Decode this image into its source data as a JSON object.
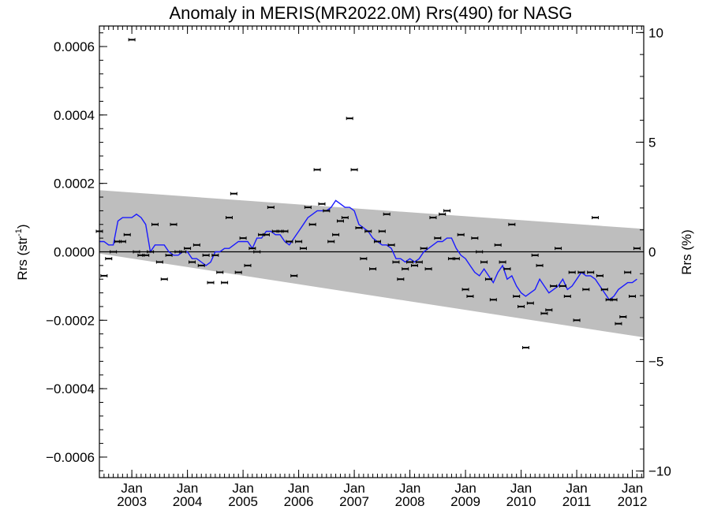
{
  "chart_data": {
    "type": "scatter",
    "title": "Anomaly in MERIS(MR2022.0M) Rrs(490) for NASG",
    "ylabel_left": "Rrs (str",
    "ylabel_left_sup": "-1",
    "ylabel_left_tail": ")",
    "ylabel_right": "Rrs (%)",
    "ylim_left": [
      -0.00066,
      0.00066
    ],
    "ylim_right": [
      -10.3,
      10.3
    ],
    "xlim": [
      "2002-06-01",
      "2012-03-15"
    ],
    "left_ticks": [
      {
        "v": 0.0006,
        "label": "0.0006"
      },
      {
        "v": 0.0004,
        "label": "0.0004"
      },
      {
        "v": 0.0002,
        "label": "0.0002"
      },
      {
        "v": 0.0,
        "label": "0.0000"
      },
      {
        "v": -0.0002,
        "label": "−0.0002"
      },
      {
        "v": -0.0004,
        "label": "−0.0004"
      },
      {
        "v": -0.0006,
        "label": "−0.0006"
      }
    ],
    "right_ticks": [
      {
        "v": 10,
        "label": "10"
      },
      {
        "v": 5,
        "label": "5"
      },
      {
        "v": 0,
        "label": "0"
      },
      {
        "v": -5,
        "label": "−5"
      },
      {
        "v": -10,
        "label": "−10"
      }
    ],
    "x_ticks": [
      {
        "date": "2003-01-01",
        "month": "Jan",
        "year": "2003"
      },
      {
        "date": "2004-01-01",
        "month": "Jan",
        "year": "2004"
      },
      {
        "date": "2005-01-01",
        "month": "Jan",
        "year": "2005"
      },
      {
        "date": "2006-01-01",
        "month": "Jan",
        "year": "2006"
      },
      {
        "date": "2007-01-01",
        "month": "Jan",
        "year": "2007"
      },
      {
        "date": "2008-01-01",
        "month": "Jan",
        "year": "2008"
      },
      {
        "date": "2009-01-01",
        "month": "Jan",
        "year": "2009"
      },
      {
        "date": "2010-01-01",
        "month": "Jan",
        "year": "2010"
      },
      {
        "date": "2011-01-01",
        "month": "Jan",
        "year": "2011"
      },
      {
        "date": "2012-01-01",
        "month": "Jan",
        "year": "2012"
      }
    ],
    "band": {
      "start": "2002-06-01",
      "end": "2012-03-15",
      "upper": [
        0.00018,
        6.7e-05
      ],
      "lower": [
        -5e-06,
        -0.00025
      ],
      "color": "#bebebe"
    },
    "monthly_anomalies": {
      "color": "#000000",
      "points": [
        [
          "2002-06",
          6e-05
        ],
        [
          "2002-07",
          -7e-05
        ],
        [
          "2002-08",
          -2e-05
        ],
        [
          "2002-09",
          0.0
        ],
        [
          "2002-10",
          3e-05
        ],
        [
          "2002-11",
          3e-05
        ],
        [
          "2002-12",
          5e-05
        ],
        [
          "2003-01",
          0.00062
        ],
        [
          "2003-02",
          0.0
        ],
        [
          "2003-03",
          -1e-05
        ],
        [
          "2003-04",
          -1e-05
        ],
        [
          "2003-05",
          0.0
        ],
        [
          "2003-06",
          8e-05
        ],
        [
          "2003-07",
          -3e-05
        ],
        [
          "2003-08",
          -8e-05
        ],
        [
          "2003-09",
          -1e-05
        ],
        [
          "2003-10",
          8e-05
        ],
        [
          "2003-11",
          0.0
        ],
        [
          "2003-12",
          0.0
        ],
        [
          "2004-01",
          1e-05
        ],
        [
          "2004-02",
          -3e-05
        ],
        [
          "2004-03",
          2e-05
        ],
        [
          "2004-04",
          -4e-05
        ],
        [
          "2004-05",
          -1e-05
        ],
        [
          "2004-06",
          -9e-05
        ],
        [
          "2004-07",
          -1e-05
        ],
        [
          "2004-08",
          -6e-05
        ],
        [
          "2004-09",
          -9e-05
        ],
        [
          "2004-10",
          0.0001
        ],
        [
          "2004-11",
          0.00017
        ],
        [
          "2004-12",
          -6e-05
        ],
        [
          "2005-01",
          4e-05
        ],
        [
          "2005-02",
          -4e-05
        ],
        [
          "2005-03",
          1e-05
        ],
        [
          "2005-04",
          0.0
        ],
        [
          "2005-05",
          5e-05
        ],
        [
          "2005-06",
          5e-05
        ],
        [
          "2005-07",
          0.00013
        ],
        [
          "2005-08",
          6e-05
        ],
        [
          "2005-09",
          6e-05
        ],
        [
          "2005-10",
          6e-05
        ],
        [
          "2005-11",
          3e-05
        ],
        [
          "2005-12",
          -7e-05
        ],
        [
          "2006-01",
          3e-05
        ],
        [
          "2006-02",
          1e-05
        ],
        [
          "2006-03",
          0.00013
        ],
        [
          "2006-04",
          8e-05
        ],
        [
          "2006-05",
          0.00024
        ],
        [
          "2006-06",
          0.00014
        ],
        [
          "2006-07",
          0.00012
        ],
        [
          "2006-08",
          3e-05
        ],
        [
          "2006-09",
          5e-05
        ],
        [
          "2006-10",
          9e-05
        ],
        [
          "2006-11",
          0.0001
        ],
        [
          "2006-12",
          0.00039
        ],
        [
          "2007-01",
          0.00024
        ],
        [
          "2007-02",
          7e-05
        ],
        [
          "2007-03",
          -2e-05
        ],
        [
          "2007-04",
          6e-05
        ],
        [
          "2007-05",
          -5e-05
        ],
        [
          "2007-06",
          3e-05
        ],
        [
          "2007-07",
          6e-05
        ],
        [
          "2007-08",
          0.00011
        ],
        [
          "2007-09",
          2e-05
        ],
        [
          "2007-10",
          -3e-05
        ],
        [
          "2007-11",
          -8e-05
        ],
        [
          "2007-12",
          -5e-05
        ],
        [
          "2008-01",
          -3e-05
        ],
        [
          "2008-02",
          -4e-05
        ],
        [
          "2008-03",
          -3e-05
        ],
        [
          "2008-04",
          1e-05
        ],
        [
          "2008-05",
          -5e-05
        ],
        [
          "2008-06",
          0.0001
        ],
        [
          "2008-07",
          4e-05
        ],
        [
          "2008-08",
          0.00011
        ],
        [
          "2008-09",
          0.00012
        ],
        [
          "2008-10",
          -2e-05
        ],
        [
          "2008-11",
          -2e-05
        ],
        [
          "2008-12",
          5e-05
        ],
        [
          "2009-01",
          -0.00011
        ],
        [
          "2009-02",
          -0.00013
        ],
        [
          "2009-03",
          4e-05
        ],
        [
          "2009-04",
          0.0
        ],
        [
          "2009-05",
          -3e-05
        ],
        [
          "2009-06",
          -8e-05
        ],
        [
          "2009-07",
          -0.00014
        ],
        [
          "2009-08",
          2e-05
        ],
        [
          "2009-09",
          -3e-05
        ],
        [
          "2009-10",
          -5e-05
        ],
        [
          "2009-11",
          8e-05
        ],
        [
          "2009-12",
          -0.00013
        ],
        [
          "2010-01",
          -0.00016
        ],
        [
          "2010-02",
          -0.00028
        ],
        [
          "2010-03",
          -0.00015
        ],
        [
          "2010-04",
          -1e-05
        ],
        [
          "2010-05",
          -4e-05
        ],
        [
          "2010-06",
          -0.00018
        ],
        [
          "2010-07",
          -0.00017
        ],
        [
          "2010-08",
          -0.0001
        ],
        [
          "2010-09",
          1e-05
        ],
        [
          "2010-10",
          -0.0001
        ],
        [
          "2010-11",
          -0.00013
        ],
        [
          "2010-12",
          -6e-05
        ],
        [
          "2011-01",
          -0.0002
        ],
        [
          "2011-02",
          -6e-05
        ],
        [
          "2011-03",
          -0.00011
        ],
        [
          "2011-04",
          -6e-05
        ],
        [
          "2011-05",
          0.0001
        ],
        [
          "2011-06",
          -7e-05
        ],
        [
          "2011-07",
          -0.00011
        ],
        [
          "2011-08",
          -0.00014
        ],
        [
          "2011-09",
          -0.00014
        ],
        [
          "2011-10",
          -0.00021
        ],
        [
          "2011-11",
          -0.00019
        ],
        [
          "2011-12",
          -6e-05
        ],
        [
          "2012-01",
          -0.00013
        ],
        [
          "2012-02",
          1e-05
        ]
      ]
    },
    "smoothed_series": {
      "color": "#1a1aff",
      "points": [
        [
          "2002-06",
          3e-05
        ],
        [
          "2002-07",
          3e-05
        ],
        [
          "2002-08",
          2e-05
        ],
        [
          "2002-09",
          2e-05
        ],
        [
          "2002-10",
          9e-05
        ],
        [
          "2002-11",
          0.0001
        ],
        [
          "2002-12",
          0.0001
        ],
        [
          "2003-01",
          0.0001
        ],
        [
          "2003-02",
          0.00011
        ],
        [
          "2003-03",
          0.0001
        ],
        [
          "2003-04",
          8e-05
        ],
        [
          "2003-05",
          0.0
        ],
        [
          "2003-06",
          2e-05
        ],
        [
          "2003-07",
          2e-05
        ],
        [
          "2003-08",
          2e-05
        ],
        [
          "2003-09",
          0.0
        ],
        [
          "2003-10",
          -1e-05
        ],
        [
          "2003-11",
          -1e-05
        ],
        [
          "2003-12",
          0.0
        ],
        [
          "2004-01",
          0.0
        ],
        [
          "2004-02",
          -2e-05
        ],
        [
          "2004-03",
          -2e-05
        ],
        [
          "2004-04",
          -3e-05
        ],
        [
          "2004-05",
          -4e-05
        ],
        [
          "2004-06",
          -3e-05
        ],
        [
          "2004-07",
          0.0
        ],
        [
          "2004-08",
          0.0
        ],
        [
          "2004-09",
          1e-05
        ],
        [
          "2004-10",
          1e-05
        ],
        [
          "2004-11",
          2e-05
        ],
        [
          "2004-12",
          3e-05
        ],
        [
          "2005-01",
          3e-05
        ],
        [
          "2005-02",
          3e-05
        ],
        [
          "2005-03",
          1e-05
        ],
        [
          "2005-04",
          4e-05
        ],
        [
          "2005-05",
          4e-05
        ],
        [
          "2005-06",
          6e-05
        ],
        [
          "2005-07",
          6e-05
        ],
        [
          "2005-08",
          5e-05
        ],
        [
          "2005-09",
          5e-05
        ],
        [
          "2005-10",
          3e-05
        ],
        [
          "2005-11",
          2e-05
        ],
        [
          "2005-12",
          4e-05
        ],
        [
          "2006-01",
          6e-05
        ],
        [
          "2006-02",
          8e-05
        ],
        [
          "2006-03",
          0.0001
        ],
        [
          "2006-04",
          0.00011
        ],
        [
          "2006-05",
          0.00012
        ],
        [
          "2006-06",
          0.00012
        ],
        [
          "2006-07",
          0.00012
        ],
        [
          "2006-08",
          0.00013
        ],
        [
          "2006-09",
          0.00015
        ],
        [
          "2006-10",
          0.00014
        ],
        [
          "2006-11",
          0.00013
        ],
        [
          "2006-12",
          0.00013
        ],
        [
          "2007-01",
          0.00012
        ],
        [
          "2007-02",
          8e-05
        ],
        [
          "2007-03",
          7e-05
        ],
        [
          "2007-04",
          6e-05
        ],
        [
          "2007-05",
          4e-05
        ],
        [
          "2007-06",
          3e-05
        ],
        [
          "2007-07",
          2e-05
        ],
        [
          "2007-08",
          2e-05
        ],
        [
          "2007-09",
          1e-05
        ],
        [
          "2007-10",
          -2e-05
        ],
        [
          "2007-11",
          -2e-05
        ],
        [
          "2007-12",
          -3e-05
        ],
        [
          "2008-01",
          -2e-05
        ],
        [
          "2008-02",
          -3e-05
        ],
        [
          "2008-03",
          -2e-05
        ],
        [
          "2008-04",
          0.0
        ],
        [
          "2008-05",
          1e-05
        ],
        [
          "2008-06",
          2e-05
        ],
        [
          "2008-07",
          3e-05
        ],
        [
          "2008-08",
          3e-05
        ],
        [
          "2008-09",
          4e-05
        ],
        [
          "2008-10",
          4e-05
        ],
        [
          "2008-11",
          1e-05
        ],
        [
          "2008-12",
          -1e-05
        ],
        [
          "2009-01",
          -2e-05
        ],
        [
          "2009-02",
          -4e-05
        ],
        [
          "2009-03",
          -6e-05
        ],
        [
          "2009-04",
          -7e-05
        ],
        [
          "2009-05",
          -5e-05
        ],
        [
          "2009-06",
          -7e-05
        ],
        [
          "2009-07",
          -9e-05
        ],
        [
          "2009-08",
          -6e-05
        ],
        [
          "2009-09",
          -4e-05
        ],
        [
          "2009-10",
          -8e-05
        ],
        [
          "2009-11",
          -7e-05
        ],
        [
          "2009-12",
          -0.0001
        ],
        [
          "2010-01",
          -0.00012
        ],
        [
          "2010-02",
          -0.00013
        ],
        [
          "2010-03",
          -0.00012
        ],
        [
          "2010-04",
          -0.00011
        ],
        [
          "2010-05",
          -8e-05
        ],
        [
          "2010-06",
          -0.0001
        ],
        [
          "2010-07",
          -0.00012
        ],
        [
          "2010-08",
          -0.00011
        ],
        [
          "2010-09",
          -0.0001
        ],
        [
          "2010-10",
          -8e-05
        ],
        [
          "2010-11",
          -0.00011
        ],
        [
          "2010-12",
          -0.0001
        ],
        [
          "2011-01",
          -8e-05
        ],
        [
          "2011-02",
          -6e-05
        ],
        [
          "2011-03",
          -7e-05
        ],
        [
          "2011-04",
          -7e-05
        ],
        [
          "2011-05",
          -8e-05
        ],
        [
          "2011-06",
          -0.0001
        ],
        [
          "2011-07",
          -0.00012
        ],
        [
          "2011-08",
          -0.00014
        ],
        [
          "2011-09",
          -0.00013
        ],
        [
          "2011-10",
          -0.00011
        ],
        [
          "2011-11",
          -0.0001
        ],
        [
          "2011-12",
          -9e-05
        ],
        [
          "2012-01",
          -9e-05
        ],
        [
          "2012-02",
          -8e-05
        ]
      ]
    },
    "zero_line": 0.0,
    "grid": false
  }
}
